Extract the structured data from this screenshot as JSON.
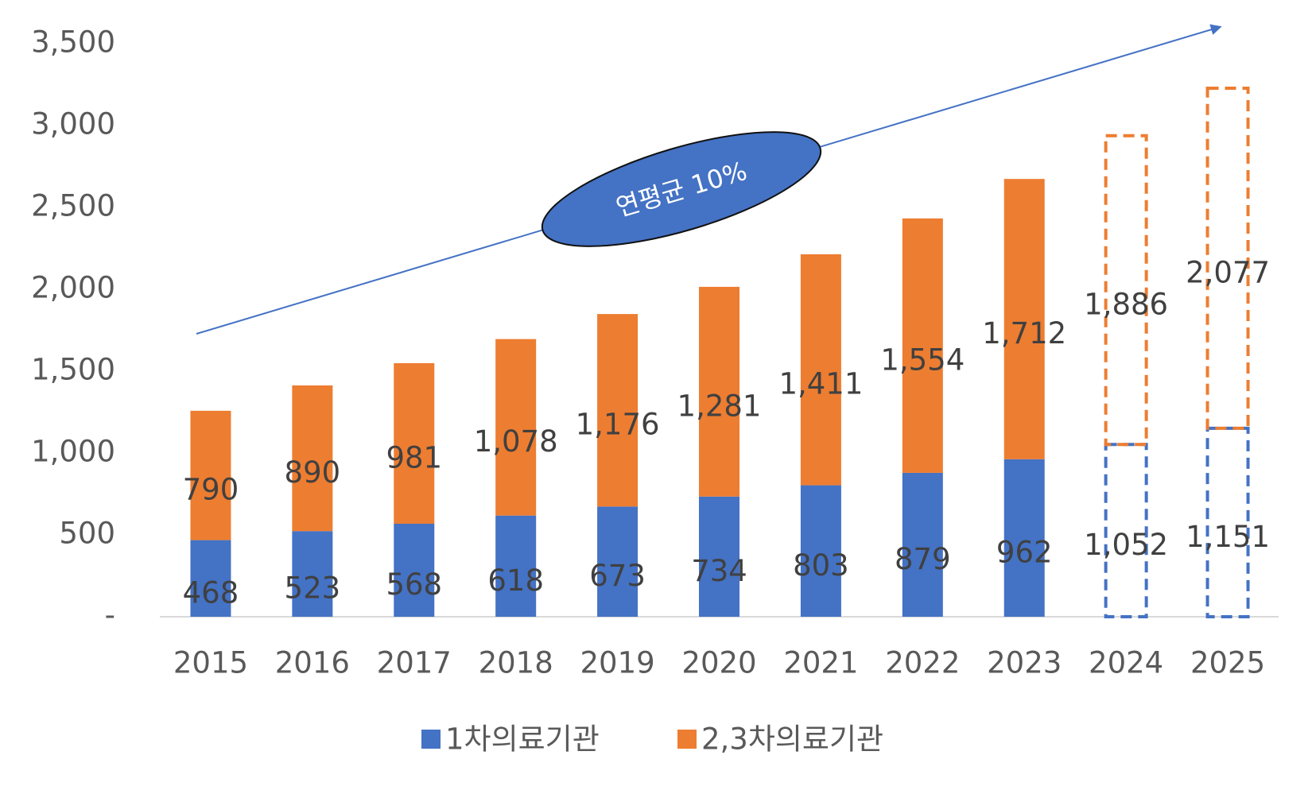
{
  "chart_data": {
    "type": "stacked-bar",
    "annotation": "연평균 10%",
    "categories": [
      "2015",
      "2016",
      "2017",
      "2018",
      "2019",
      "2020",
      "2021",
      "2022",
      "2023",
      "2024",
      "2025"
    ],
    "dashed": [
      false,
      false,
      false,
      false,
      false,
      false,
      false,
      false,
      false,
      true,
      true
    ],
    "series": [
      {
        "name": "1차의료기관",
        "color": "#4472c4",
        "values": [
          468,
          523,
          568,
          618,
          673,
          734,
          803,
          879,
          962,
          1052,
          1151
        ],
        "value_labels": [
          "468",
          "523",
          "568",
          "618",
          "673",
          "734",
          "803",
          "879",
          "962",
          "1,052",
          "1,151"
        ]
      },
      {
        "name": "2,3차의료기관",
        "color": "#ed7d31",
        "values": [
          790,
          890,
          981,
          1078,
          1176,
          1281,
          1411,
          1554,
          1712,
          1886,
          2077
        ],
        "value_labels": [
          "790",
          "890",
          "981",
          "1,078",
          "1,176",
          "1,281",
          "1,411",
          "1,554",
          "1,712",
          "1,886",
          "2,077"
        ]
      }
    ],
    "ylim": [
      0,
      3500
    ],
    "yticks": [
      {
        "value": 0,
        "label": "-"
      },
      500,
      {
        "value": 1000,
        "label": "1,000"
      },
      {
        "value": 1500,
        "label": "1,500"
      },
      {
        "value": 2000,
        "label": "2,000"
      },
      {
        "value": 2500,
        "label": "2,500"
      },
      {
        "value": 3000,
        "label": "3,000"
      },
      {
        "value": 3500,
        "label": "3,500"
      }
    ],
    "grid": false
  }
}
